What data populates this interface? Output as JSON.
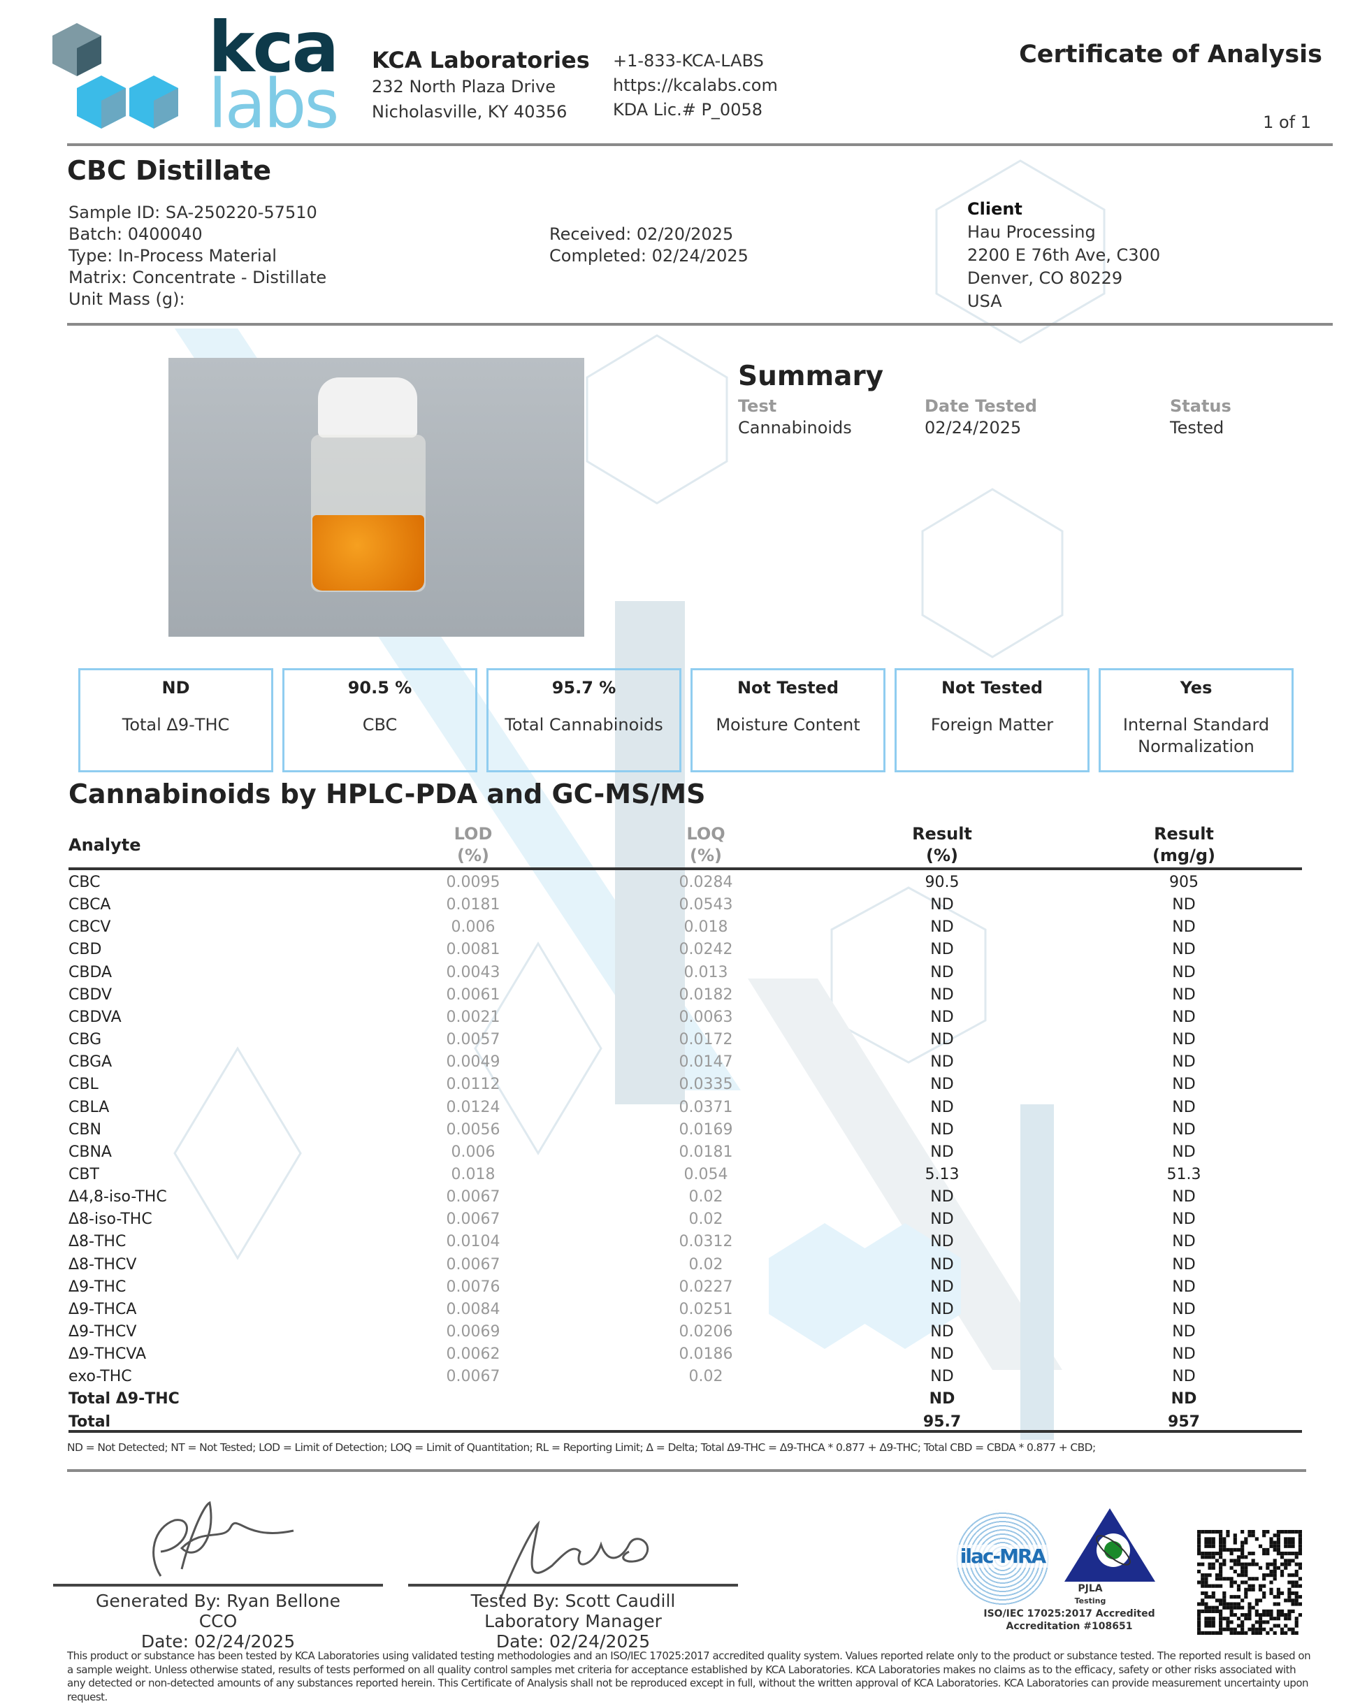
{
  "lab": {
    "logo_top": "kca",
    "logo_bottom": "labs",
    "name": "KCA Laboratories",
    "address1": "232 North Plaza Drive",
    "address2": "Nicholasville, KY 40356",
    "phone": "+1-833-KCA-LABS",
    "website": "https://kcalabs.com",
    "license": "KDA Lic.# P_0058"
  },
  "doc": {
    "title": "Certificate of Analysis",
    "page": "1 of 1"
  },
  "sample": {
    "name": "CBC Distillate",
    "id": "Sample ID: SA-250220-57510",
    "batch": "Batch: 0400040",
    "type": "Type: In-Process Material",
    "matrix": "Matrix: Concentrate - Distillate",
    "unit_mass": "Unit Mass (g):",
    "received": "Received: 02/20/2025",
    "completed": "Completed: 02/24/2025"
  },
  "client": {
    "label": "Client",
    "name": "Hau Processing",
    "address1": "2200 E 76th Ave, C300",
    "address2": "Denver, CO 80229",
    "country": "USA"
  },
  "summary": {
    "title": "Summary",
    "test_label": "Test",
    "test_value": "Cannabinoids",
    "date_label": "Date Tested",
    "date_value": "02/24/2025",
    "status_label": "Status",
    "status_value": "Tested"
  },
  "highlights": [
    {
      "value": "ND",
      "label": "Total Δ9-THC"
    },
    {
      "value": "90.5 %",
      "label": "CBC"
    },
    {
      "value": "95.7 %",
      "label": "Total Cannabinoids"
    },
    {
      "value": "Not Tested",
      "label": "Moisture Content"
    },
    {
      "value": "Not Tested",
      "label": "Foreign Matter"
    },
    {
      "value": "Yes",
      "label": "Internal Standard Normalization"
    }
  ],
  "section_title": "Cannabinoids by HPLC-PDA and GC-MS/MS",
  "table": {
    "headers": {
      "analyte": "Analyte",
      "lod": "LOD",
      "lod_unit": "(%)",
      "loq": "LOQ",
      "loq_unit": "(%)",
      "result": "Result",
      "result_unit": "(%)",
      "mg": "Result",
      "mg_unit": "(mg/g)"
    },
    "rows": [
      [
        "CBC",
        "0.0095",
        "0.0284",
        "90.5",
        "905"
      ],
      [
        "CBCA",
        "0.0181",
        "0.0543",
        "ND",
        "ND"
      ],
      [
        "CBCV",
        "0.006",
        "0.018",
        "ND",
        "ND"
      ],
      [
        "CBD",
        "0.0081",
        "0.0242",
        "ND",
        "ND"
      ],
      [
        "CBDA",
        "0.0043",
        "0.013",
        "ND",
        "ND"
      ],
      [
        "CBDV",
        "0.0061",
        "0.0182",
        "ND",
        "ND"
      ],
      [
        "CBDVA",
        "0.0021",
        "0.0063",
        "ND",
        "ND"
      ],
      [
        "CBG",
        "0.0057",
        "0.0172",
        "ND",
        "ND"
      ],
      [
        "CBGA",
        "0.0049",
        "0.0147",
        "ND",
        "ND"
      ],
      [
        "CBL",
        "0.0112",
        "0.0335",
        "ND",
        "ND"
      ],
      [
        "CBLA",
        "0.0124",
        "0.0371",
        "ND",
        "ND"
      ],
      [
        "CBN",
        "0.0056",
        "0.0169",
        "ND",
        "ND"
      ],
      [
        "CBNA",
        "0.006",
        "0.0181",
        "ND",
        "ND"
      ],
      [
        "CBT",
        "0.018",
        "0.054",
        "5.13",
        "51.3"
      ],
      [
        "Δ4,8-iso-THC",
        "0.0067",
        "0.02",
        "ND",
        "ND"
      ],
      [
        "Δ8-iso-THC",
        "0.0067",
        "0.02",
        "ND",
        "ND"
      ],
      [
        "Δ8-THC",
        "0.0104",
        "0.0312",
        "ND",
        "ND"
      ],
      [
        "Δ8-THCV",
        "0.0067",
        "0.02",
        "ND",
        "ND"
      ],
      [
        "Δ9-THC",
        "0.0076",
        "0.0227",
        "ND",
        "ND"
      ],
      [
        "Δ9-THCA",
        "0.0084",
        "0.0251",
        "ND",
        "ND"
      ],
      [
        "Δ9-THCV",
        "0.0069",
        "0.0206",
        "ND",
        "ND"
      ],
      [
        "Δ9-THCVA",
        "0.0062",
        "0.0186",
        "ND",
        "ND"
      ],
      [
        "exo-THC",
        "0.0067",
        "0.02",
        "ND",
        "ND"
      ]
    ],
    "totals": [
      [
        "Total Δ9-THC",
        "",
        "",
        "ND",
        "ND"
      ],
      [
        "Total",
        "",
        "",
        "95.7",
        "957"
      ]
    ]
  },
  "footnote": "ND = Not Detected; NT = Not Tested; LOD = Limit of Detection; LOQ = Limit of Quantitation; RL = Reporting Limit; Δ = Delta; Total Δ9-THC = Δ9-THCA * 0.877 + Δ9-THC; Total CBD = CBDA * 0.877 + CBD;",
  "signatures": [
    {
      "by": "Generated By: Ryan Bellone",
      "role": "CCO",
      "date": "Date: 02/24/2025"
    },
    {
      "by": "Tested By: Scott Caudill",
      "role": "Laboratory Manager",
      "date": "Date: 02/24/2025"
    }
  ],
  "accreditation": {
    "ilac": "ilac-MRA",
    "pjla": "PJLA",
    "pjla_sub": "Testing",
    "iso": "ISO/IEC 17025:2017 Accredited",
    "number": "Accreditation #108651"
  },
  "disclaimer": "This product or substance has been tested by KCA Laboratories using validated testing methodologies and an ISO/IEC 17025:2017 accredited quality system. Values reported relate only to the product or substance tested. The reported result is based on a sample weight. Unless otherwise stated, results of tests performed on all quality control samples met criteria for acceptance established by KCA Laboratories. KCA Laboratories makes no claims as to the efficacy, safety or other risks associated with any detected or non-detected amounts of any substances reported herein. This Certificate of Analysis shall not be reproduced except in full, without the written approval of KCA Laboratories. KCA Laboratories can provide measurement uncertainty upon request.",
  "colors": {
    "brand_dark": "#0e3a4a",
    "brand_light": "#7fcbe6",
    "box_border": "#90cdf0"
  }
}
